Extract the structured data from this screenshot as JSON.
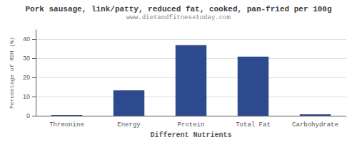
{
  "chart_data": {
    "type": "bar",
    "title": "Pork sausage, link/patty, reduced fat, cooked, pan-fried per 100g",
    "subtitle": "www.dietandfitnesstoday.com",
    "categories": [
      "Threonine",
      "Energy",
      "Protein",
      "Total Fat",
      "Carbohydrate"
    ],
    "values": [
      0.4,
      13.3,
      37.0,
      31.0,
      0.8
    ],
    "color": "#2e4a8e",
    "xlabel": "Different Nutrients",
    "ylabel": "Percentage of RDH (%)",
    "ylim": [
      0,
      45
    ],
    "yticks": [
      0,
      10,
      20,
      30,
      40
    ],
    "grid": true
  }
}
